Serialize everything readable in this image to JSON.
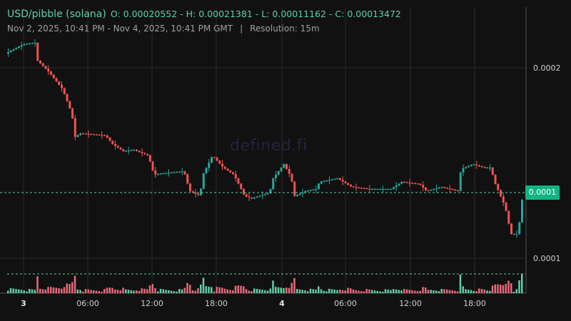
{
  "header": {
    "pair": "USD/pibble (solana)",
    "ohlc": "O: 0.00020552 - H: 0.00021381 - L: 0.00011162 - C: 0.00013472",
    "range": "Nov 2, 2025, 10:41 PM - Nov 4, 2025, 10:41 PM GMT",
    "separator": "|",
    "resolution": "Resolution: 15m"
  },
  "watermark": "defined.fi",
  "y_axis": {
    "labels": [
      "0.0002",
      "0.0001"
    ],
    "current_price_label": "0.0001",
    "current_price": 0.00013472
  },
  "x_axis": {
    "labels": [
      "3",
      "06:00",
      "12:00",
      "18:00",
      "4",
      "06:00",
      "12:00",
      "18:00"
    ]
  },
  "colors": {
    "up": "#26a69a",
    "down": "#ef5350",
    "vol_up": "#5fd0a6",
    "vol_down": "#e86a7a",
    "grid": "#2a2a2a"
  },
  "price_path": [
    [
      0,
      0.0002075
    ],
    [
      1.67,
      0.0002123
    ],
    [
      2.8,
      0.0002131
    ],
    [
      3.0,
      0.0002037
    ],
    [
      4,
      0.0001981
    ],
    [
      5.33,
      0.0001888
    ],
    [
      6.2,
      0.0001758
    ],
    [
      6.47,
      0.0001638
    ],
    [
      7,
      0.0001657
    ],
    [
      9.33,
      0.0001646
    ],
    [
      10,
      0.0001601
    ],
    [
      11,
      0.0001564
    ],
    [
      12,
      0.0001571
    ],
    [
      13.33,
      0.0001541
    ],
    [
      13.87,
      0.0001441
    ],
    [
      14.67,
      0.0001448
    ],
    [
      16.67,
      0.0001459
    ],
    [
      17.2,
      0.0001355
    ],
    [
      18.2,
      0.0001329
    ],
    [
      18.33,
      0.0001429
    ],
    [
      19.33,
      0.0001541
    ],
    [
      20.33,
      0.0001478
    ],
    [
      21.33,
      0.0001441
    ],
    [
      22.33,
      0.0001329
    ],
    [
      23,
      0.0001317
    ],
    [
      24.67,
      0.0001347
    ],
    [
      25,
      0.0001422
    ],
    [
      26,
      0.0001496
    ],
    [
      26.67,
      0.0001429
    ],
    [
      27,
      0.0001329
    ],
    [
      28,
      0.0001355
    ],
    [
      29,
      0.0001366
    ],
    [
      29.33,
      0.0001403
    ],
    [
      31,
      0.0001422
    ],
    [
      32.33,
      0.0001377
    ],
    [
      34,
      0.0001366
    ],
    [
      36,
      0.0001366
    ],
    [
      37,
      0.0001403
    ],
    [
      38.67,
      0.0001392
    ],
    [
      39.33,
      0.0001355
    ],
    [
      40.67,
      0.0001377
    ],
    [
      42.33,
      0.0001355
    ],
    [
      42.53,
      0.000147
    ],
    [
      43.67,
      0.0001496
    ],
    [
      44.67,
      0.0001478
    ],
    [
      45.33,
      0.0001478
    ],
    [
      45.67,
      0.0001403
    ],
    [
      46.67,
      0.0001273
    ],
    [
      47.2,
      0.0001131
    ],
    [
      47.87,
      0.0001131
    ],
    [
      48.33,
      0.00013472
    ]
  ]
}
